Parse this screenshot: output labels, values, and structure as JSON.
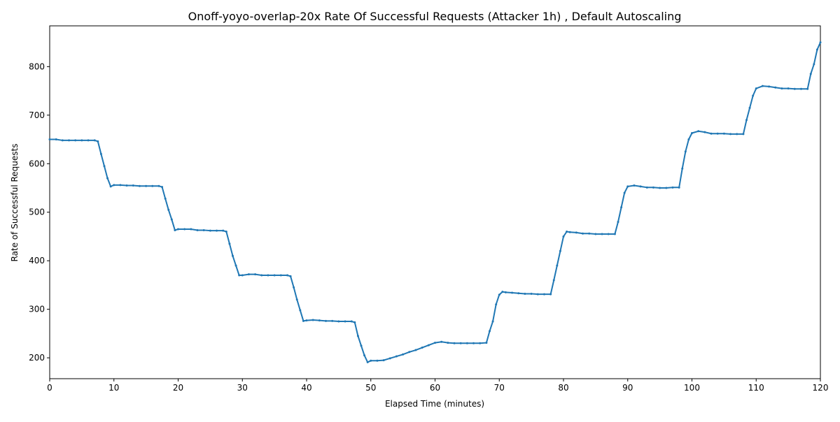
{
  "chart_data": {
    "type": "line",
    "title": "Onoff-yoyo-overlap-20x Rate Of Successful Requests (Attacker 1h) , Default Autoscaling",
    "x_label": "Elapsed Time (minutes)",
    "y_label": "Rate of Successful Requests",
    "xlim": [
      0,
      120
    ],
    "ylim": [
      157,
      884
    ],
    "xticks": [
      0,
      10,
      20,
      30,
      40,
      50,
      60,
      70,
      80,
      90,
      100,
      110,
      120
    ],
    "yticks": [
      200,
      300,
      400,
      500,
      600,
      700,
      800
    ],
    "grid": false,
    "series": [
      {
        "color": "#1f77b4",
        "x": [
          0,
          1,
          2,
          3,
          4,
          5,
          6,
          7,
          7.5,
          8,
          8.5,
          9,
          9.5,
          10,
          11,
          12,
          13,
          14,
          15,
          16,
          17,
          17.5,
          18,
          18.5,
          19,
          19.5,
          20,
          21,
          22,
          23,
          24,
          25,
          26,
          27,
          27.5,
          28,
          28.5,
          29,
          29.5,
          30,
          31,
          32,
          33,
          34,
          35,
          36,
          37,
          37.5,
          38,
          38.5,
          39,
          39.5,
          40,
          41,
          42,
          43,
          44,
          45,
          46,
          47,
          47.5,
          48,
          48.5,
          49,
          49.5,
          50,
          51,
          52,
          53,
          54,
          55,
          56,
          57,
          58,
          59,
          60,
          61,
          62,
          63,
          64,
          65,
          66,
          67,
          68,
          68.5,
          69,
          69.5,
          70,
          70.5,
          71,
          72,
          73,
          74,
          75,
          76,
          77,
          78,
          78.5,
          79,
          79.5,
          80,
          80.5,
          81,
          82,
          83,
          84,
          85,
          86,
          87,
          88,
          88.5,
          89,
          89.5,
          90,
          91,
          92,
          93,
          94,
          95,
          96,
          97,
          98,
          98.5,
          99,
          99.5,
          100,
          101,
          102,
          103,
          104,
          105,
          106,
          107,
          108,
          108.5,
          109,
          109.5,
          110,
          111,
          112,
          113,
          114,
          115,
          116,
          117,
          118,
          118.5,
          119,
          119.5,
          120
        ],
        "values": [
          650,
          650,
          648,
          648,
          648,
          648,
          648,
          648,
          646,
          620,
          595,
          570,
          553,
          556,
          556,
          555,
          555,
          554,
          554,
          554,
          554,
          552,
          528,
          505,
          485,
          463,
          465,
          465,
          465,
          463,
          463,
          462,
          462,
          462,
          460,
          435,
          410,
          390,
          370,
          370,
          372,
          372,
          370,
          370,
          370,
          370,
          370,
          368,
          345,
          320,
          298,
          276,
          277,
          278,
          277,
          276,
          276,
          275,
          275,
          275,
          273,
          245,
          225,
          205,
          191,
          194,
          194,
          195,
          199,
          203,
          207,
          212,
          216,
          221,
          226,
          231,
          233,
          231,
          230,
          230,
          230,
          230,
          230,
          231,
          255,
          275,
          310,
          330,
          336,
          335,
          334,
          333,
          332,
          332,
          331,
          331,
          331,
          360,
          390,
          420,
          450,
          460,
          459,
          458,
          456,
          456,
          455,
          455,
          455,
          455,
          480,
          510,
          540,
          553,
          555,
          553,
          551,
          551,
          550,
          550,
          551,
          551,
          590,
          625,
          650,
          663,
          667,
          665,
          662,
          662,
          662,
          661,
          661,
          661,
          690,
          715,
          740,
          755,
          760,
          759,
          757,
          755,
          755,
          754,
          754,
          754,
          785,
          805,
          835,
          850
        ]
      }
    ]
  }
}
